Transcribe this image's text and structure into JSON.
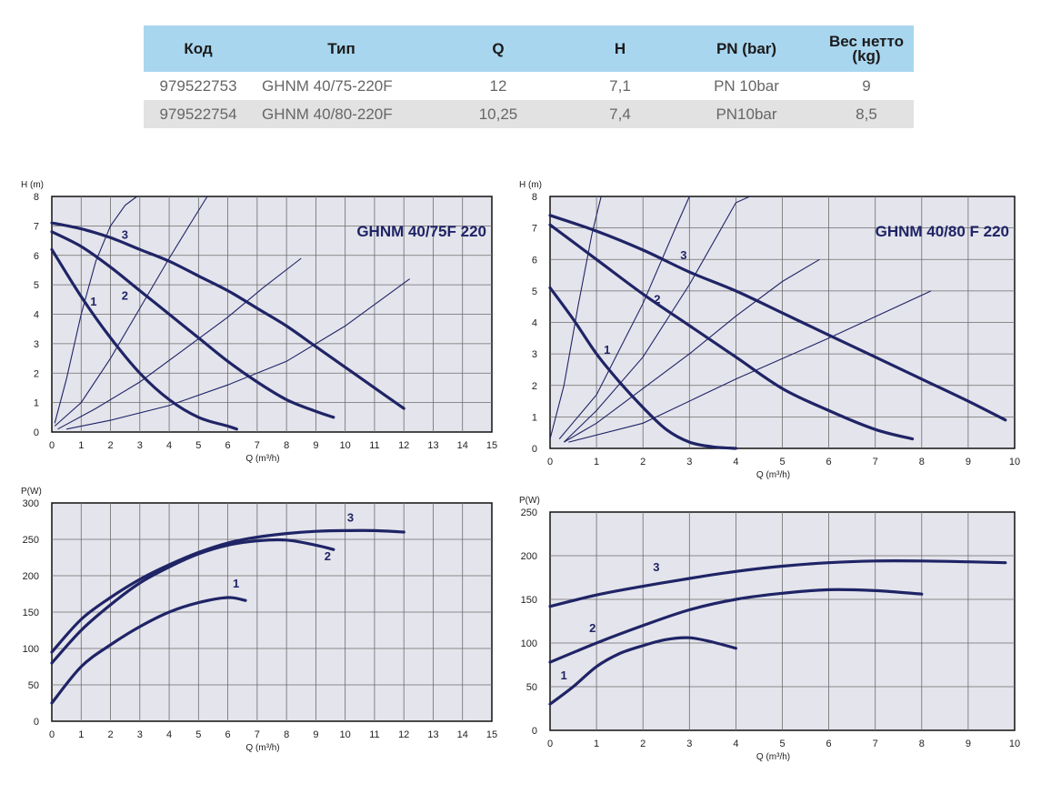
{
  "table": {
    "headers": [
      "Код",
      "Тип",
      "Q",
      "H",
      "PN (bar)",
      "Вес нетто (kg)"
    ],
    "rows": [
      [
        "979522753",
        "GHNM 40/75-220F",
        "12",
        "7,1",
        "PN 10bar",
        "9"
      ],
      [
        "979522754",
        "GHNM 40/80-220F",
        "10,25",
        "7,4",
        "PN10bar",
        "8,5"
      ]
    ]
  },
  "colors": {
    "curve": "#1f2466",
    "grid": "#6d6d6d",
    "plot_bg": "#e4e4ec",
    "header_bg": "#a9d6ef",
    "row_alt_bg": "#e2e2e2"
  },
  "chart_data": [
    {
      "type": "line",
      "title": "GHNM 40/75F 220",
      "xlabel": "Q (m³/h)",
      "ylabel": "H (m)",
      "xlim": [
        0,
        15
      ],
      "ylim": [
        0,
        8
      ],
      "xticks": [
        0,
        1,
        2,
        3,
        4,
        5,
        6,
        7,
        8,
        9,
        10,
        11,
        12,
        13,
        14,
        15
      ],
      "yticks": [
        0,
        1,
        2,
        3,
        4,
        5,
        6,
        7,
        8
      ],
      "grid": true,
      "series": [
        {
          "name": "1",
          "x": [
            0,
            1,
            2,
            3,
            4,
            5,
            6,
            6.3
          ],
          "y": [
            6.2,
            4.6,
            3.2,
            2.0,
            1.1,
            0.5,
            0.2,
            0.1
          ]
        },
        {
          "name": "2",
          "x": [
            0,
            1,
            2,
            3,
            4,
            5,
            6,
            7,
            8,
            9,
            9.6
          ],
          "y": [
            6.8,
            6.3,
            5.6,
            4.8,
            4.0,
            3.2,
            2.4,
            1.7,
            1.1,
            0.7,
            0.5
          ]
        },
        {
          "name": "3",
          "x": [
            0,
            1,
            2,
            3,
            4,
            5,
            6,
            7,
            8,
            9,
            10,
            11,
            12
          ],
          "y": [
            7.1,
            6.9,
            6.6,
            6.2,
            5.8,
            5.3,
            4.8,
            4.2,
            3.6,
            2.9,
            2.2,
            1.5,
            0.8
          ]
        }
      ],
      "system_curves": [
        {
          "x": [
            0.1,
            0.5,
            1.0,
            1.5,
            2.0,
            2.5,
            2.9
          ],
          "y": [
            0.3,
            1.8,
            4.0,
            5.8,
            7.0,
            7.7,
            8.0
          ]
        },
        {
          "x": [
            0.1,
            1.0,
            2.0,
            3.0,
            4.0,
            4.8,
            5.3
          ],
          "y": [
            0.2,
            1.0,
            2.5,
            4.2,
            5.9,
            7.2,
            8.0
          ]
        },
        {
          "x": [
            0.2,
            1.5,
            3.0,
            4.5,
            6.0,
            7.2,
            8.5
          ],
          "y": [
            0.1,
            0.8,
            1.7,
            2.8,
            3.9,
            4.9,
            5.9
          ]
        },
        {
          "x": [
            0.5,
            2.0,
            4.0,
            6.0,
            8.0,
            10.0,
            12.2
          ],
          "y": [
            0.1,
            0.4,
            0.9,
            1.6,
            2.4,
            3.6,
            5.2
          ]
        }
      ]
    },
    {
      "type": "line",
      "title": "GHNM 40/80 F 220",
      "xlabel": "Q (m³/h)",
      "ylabel": "H (m)",
      "xlim": [
        0,
        10
      ],
      "ylim": [
        0,
        8
      ],
      "xticks": [
        0,
        1,
        2,
        3,
        4,
        5,
        6,
        7,
        8,
        9,
        10
      ],
      "yticks": [
        0,
        1,
        2,
        3,
        4,
        5,
        6,
        7,
        8
      ],
      "grid": true,
      "series": [
        {
          "name": "1",
          "x": [
            0,
            0.5,
            1.0,
            1.5,
            2.0,
            2.5,
            3.0,
            3.5,
            4.0
          ],
          "y": [
            5.1,
            4.1,
            3.0,
            2.1,
            1.3,
            0.6,
            0.2,
            0.05,
            0.0
          ]
        },
        {
          "name": "2",
          "x": [
            0,
            1,
            2,
            3,
            4,
            5,
            6,
            7,
            7.8
          ],
          "y": [
            7.1,
            6.0,
            4.9,
            3.9,
            2.9,
            1.9,
            1.2,
            0.6,
            0.3
          ]
        },
        {
          "name": "3",
          "x": [
            0,
            1,
            2,
            3,
            4,
            5,
            6,
            7,
            8,
            9,
            9.8
          ],
          "y": [
            7.4,
            6.9,
            6.3,
            5.6,
            5.0,
            4.3,
            3.6,
            2.9,
            2.2,
            1.5,
            0.9
          ]
        }
      ],
      "system_curves": [
        {
          "x": [
            0.0,
            0.3,
            0.6,
            0.9,
            1.1
          ],
          "y": [
            0.3,
            2.0,
            4.5,
            6.8,
            8.0
          ]
        },
        {
          "x": [
            0.2,
            1.0,
            2.0,
            2.7,
            3.0
          ],
          "y": [
            0.3,
            1.7,
            4.6,
            7.0,
            8.0
          ]
        },
        {
          "x": [
            0.3,
            1.0,
            2.0,
            3.0,
            4.0,
            4.3
          ],
          "y": [
            0.2,
            1.2,
            2.9,
            5.2,
            7.8,
            8.0
          ]
        },
        {
          "x": [
            0.3,
            1.0,
            2.0,
            3.0,
            4.0,
            5.0,
            5.8
          ],
          "y": [
            0.2,
            0.8,
            1.9,
            3.0,
            4.2,
            5.3,
            6.0
          ]
        },
        {
          "x": [
            0.4,
            2.0,
            4.0,
            6.0,
            8.2
          ],
          "y": [
            0.2,
            0.8,
            2.2,
            3.5,
            5.0
          ]
        }
      ]
    },
    {
      "type": "line",
      "title": "",
      "xlabel": "Q (m³/h)",
      "ylabel": "P(W)",
      "xlim": [
        0,
        15
      ],
      "ylim": [
        0,
        300
      ],
      "xticks": [
        0,
        1,
        2,
        3,
        4,
        5,
        6,
        7,
        8,
        9,
        10,
        11,
        12,
        13,
        14,
        15
      ],
      "yticks": [
        0,
        50,
        100,
        150,
        200,
        250,
        300
      ],
      "grid": true,
      "series": [
        {
          "name": "1",
          "x": [
            0,
            1,
            2,
            3,
            4,
            5,
            6,
            6.6
          ],
          "y": [
            25,
            75,
            105,
            130,
            150,
            163,
            170,
            166
          ]
        },
        {
          "name": "2",
          "x": [
            0,
            1,
            2,
            3,
            4,
            5,
            6,
            7,
            8,
            9,
            9.6
          ],
          "y": [
            80,
            125,
            160,
            190,
            212,
            230,
            242,
            248,
            249,
            242,
            236
          ]
        },
        {
          "name": "3",
          "x": [
            0,
            1,
            2,
            3,
            4,
            5,
            6,
            7,
            8,
            9,
            10,
            11,
            12
          ],
          "y": [
            95,
            140,
            170,
            195,
            215,
            232,
            245,
            253,
            258,
            261,
            262,
            262,
            260
          ]
        }
      ]
    },
    {
      "type": "line",
      "title": "",
      "xlabel": "Q (m³/h)",
      "ylabel": "P(W)",
      "xlim": [
        0,
        10
      ],
      "ylim": [
        0,
        250
      ],
      "xticks": [
        0,
        1,
        2,
        3,
        4,
        5,
        6,
        7,
        8,
        9,
        10
      ],
      "yticks": [
        0,
        50,
        100,
        150,
        200,
        250
      ],
      "grid": true,
      "series": [
        {
          "name": "1",
          "x": [
            0,
            0.5,
            1,
            1.5,
            2,
            2.5,
            3,
            3.5,
            4
          ],
          "y": [
            30,
            50,
            73,
            88,
            97,
            104,
            106,
            101,
            94
          ]
        },
        {
          "name": "2",
          "x": [
            0,
            1,
            2,
            3,
            4,
            5,
            6,
            7,
            8
          ],
          "y": [
            78,
            100,
            120,
            138,
            150,
            157,
            161,
            160,
            156
          ]
        },
        {
          "name": "3",
          "x": [
            0,
            1,
            2,
            3,
            4,
            5,
            6,
            7,
            8,
            9,
            9.8
          ],
          "y": [
            142,
            155,
            165,
            174,
            182,
            188,
            192,
            194,
            194,
            193,
            192
          ]
        }
      ]
    }
  ]
}
